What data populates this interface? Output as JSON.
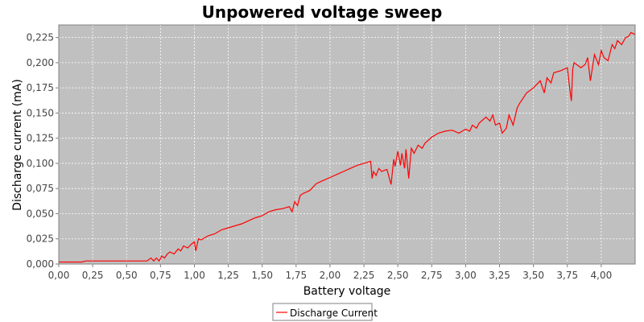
{
  "chart_data": {
    "type": "line",
    "title": "Unpowered voltage sweep",
    "xlabel": "Battery voltage",
    "ylabel": "Discharge current (mA)",
    "xlim": [
      0,
      4.25
    ],
    "ylim": [
      0,
      0.2375
    ],
    "x_ticks": [
      "0,00",
      "0,25",
      "0,50",
      "0,75",
      "1,00",
      "1,25",
      "1,50",
      "1,75",
      "2,00",
      "2,25",
      "2,50",
      "2,75",
      "3,00",
      "3,25",
      "3,50",
      "3,75",
      "4,00"
    ],
    "y_ticks": [
      "0,000",
      "0,025",
      "0,050",
      "0,075",
      "0,100",
      "0,125",
      "0,150",
      "0,175",
      "0,200",
      "0,225"
    ],
    "grid": true,
    "legend_position": "bottom",
    "colors": {
      "plot_bg": "#c0c0c0",
      "series": "#ff0000",
      "grid": "#ffffff"
    },
    "series": [
      {
        "name": "Discharge Current",
        "x": [
          0.0,
          0.1,
          0.17,
          0.2,
          0.4,
          0.6,
          0.65,
          0.68,
          0.7,
          0.72,
          0.74,
          0.76,
          0.78,
          0.8,
          0.82,
          0.85,
          0.88,
          0.9,
          0.92,
          0.95,
          0.98,
          1.0,
          1.01,
          1.03,
          1.05,
          1.1,
          1.15,
          1.2,
          1.25,
          1.3,
          1.35,
          1.4,
          1.45,
          1.5,
          1.55,
          1.6,
          1.65,
          1.7,
          1.72,
          1.74,
          1.76,
          1.78,
          1.8,
          1.85,
          1.9,
          1.95,
          2.0,
          2.05,
          2.1,
          2.15,
          2.2,
          2.25,
          2.3,
          2.31,
          2.32,
          2.34,
          2.36,
          2.38,
          2.4,
          2.42,
          2.45,
          2.47,
          2.48,
          2.5,
          2.52,
          2.53,
          2.55,
          2.56,
          2.58,
          2.6,
          2.62,
          2.65,
          2.68,
          2.7,
          2.75,
          2.8,
          2.85,
          2.9,
          2.95,
          3.0,
          3.03,
          3.05,
          3.08,
          3.1,
          3.15,
          3.18,
          3.2,
          3.22,
          3.25,
          3.27,
          3.3,
          3.32,
          3.35,
          3.38,
          3.4,
          3.45,
          3.5,
          3.55,
          3.58,
          3.6,
          3.63,
          3.65,
          3.7,
          3.75,
          3.77,
          3.78,
          3.79,
          3.8,
          3.85,
          3.88,
          3.9,
          3.92,
          3.95,
          3.98,
          4.0,
          4.02,
          4.05,
          4.08,
          4.1,
          4.12,
          4.15,
          4.18,
          4.2,
          4.22,
          4.25
        ],
        "y": [
          0.002,
          0.002,
          0.002,
          0.003,
          0.003,
          0.003,
          0.003,
          0.006,
          0.003,
          0.006,
          0.003,
          0.008,
          0.006,
          0.01,
          0.012,
          0.01,
          0.015,
          0.013,
          0.018,
          0.016,
          0.02,
          0.022,
          0.013,
          0.025,
          0.024,
          0.028,
          0.03,
          0.034,
          0.036,
          0.038,
          0.04,
          0.043,
          0.046,
          0.048,
          0.052,
          0.054,
          0.055,
          0.057,
          0.052,
          0.062,
          0.058,
          0.068,
          0.07,
          0.073,
          0.08,
          0.083,
          0.086,
          0.089,
          0.092,
          0.095,
          0.098,
          0.1,
          0.102,
          0.085,
          0.092,
          0.088,
          0.095,
          0.092,
          0.093,
          0.094,
          0.079,
          0.104,
          0.097,
          0.112,
          0.098,
          0.11,
          0.095,
          0.114,
          0.085,
          0.115,
          0.11,
          0.118,
          0.115,
          0.12,
          0.126,
          0.13,
          0.132,
          0.133,
          0.13,
          0.134,
          0.132,
          0.138,
          0.135,
          0.14,
          0.146,
          0.142,
          0.148,
          0.138,
          0.14,
          0.13,
          0.135,
          0.148,
          0.138,
          0.155,
          0.16,
          0.17,
          0.175,
          0.182,
          0.17,
          0.185,
          0.18,
          0.19,
          0.192,
          0.195,
          0.172,
          0.162,
          0.194,
          0.2,
          0.195,
          0.198,
          0.205,
          0.182,
          0.208,
          0.198,
          0.212,
          0.205,
          0.202,
          0.218,
          0.214,
          0.222,
          0.218,
          0.225,
          0.226,
          0.23,
          0.228
        ]
      }
    ]
  }
}
